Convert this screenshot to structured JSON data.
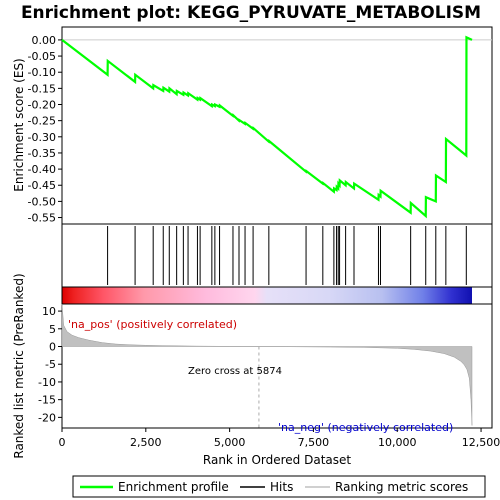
{
  "chart_data": {
    "type": "line",
    "title": "Enrichment plot: KEGG_PYRUVATE_METABOLISM",
    "top_panel": {
      "ylabel": "Enrichment score (ES)",
      "ylim": [
        -0.57,
        0.04
      ],
      "yticks": [
        0.0,
        -0.05,
        -0.1,
        -0.15,
        -0.2,
        -0.25,
        -0.3,
        -0.35,
        -0.4,
        -0.45,
        -0.5,
        -0.55
      ],
      "ytick_labels": [
        "0.00",
        "-0.05",
        "-0.10",
        "-0.15",
        "-0.20",
        "-0.25",
        "-0.30",
        "-0.35",
        "-0.40",
        "-0.45",
        "-0.50",
        "-0.55"
      ],
      "series": [
        {
          "name": "Enrichment profile",
          "color": "#00ff00",
          "x": [
            0,
            1360,
            1365,
            2180,
            2185,
            2720,
            2725,
            3020,
            3025,
            3200,
            3205,
            3420,
            3425,
            3620,
            3625,
            3760,
            3765,
            4040,
            4045,
            4120,
            4125,
            4470,
            4475,
            4560,
            4565,
            4700,
            4705,
            5100,
            5105,
            5280,
            5285,
            5460,
            5465,
            5700,
            5705,
            6170,
            6175,
            7280,
            7285,
            7780,
            7785,
            8110,
            8115,
            8190,
            8195,
            8240,
            8245,
            8280,
            8285,
            8460,
            8465,
            8710,
            8715,
            9440,
            9445,
            9500,
            9505,
            10400,
            10405,
            10850,
            10855,
            11150,
            11155,
            11450,
            11455,
            12060,
            12065,
            12230
          ],
          "y": [
            0.0,
            -0.108,
            -0.065,
            -0.13,
            -0.108,
            -0.15,
            -0.14,
            -0.158,
            -0.148,
            -0.16,
            -0.15,
            -0.168,
            -0.158,
            -0.17,
            -0.163,
            -0.172,
            -0.165,
            -0.185,
            -0.18,
            -0.185,
            -0.18,
            -0.205,
            -0.2,
            -0.205,
            -0.2,
            -0.207,
            -0.203,
            -0.235,
            -0.233,
            -0.25,
            -0.248,
            -0.26,
            -0.257,
            -0.275,
            -0.273,
            -0.315,
            -0.313,
            -0.408,
            -0.406,
            -0.445,
            -0.443,
            -0.47,
            -0.46,
            -0.465,
            -0.455,
            -0.46,
            -0.445,
            -0.45,
            -0.435,
            -0.45,
            -0.44,
            -0.46,
            -0.445,
            -0.495,
            -0.48,
            -0.485,
            -0.467,
            -0.535,
            -0.505,
            -0.545,
            -0.487,
            -0.5,
            -0.42,
            -0.44,
            -0.307,
            -0.358,
            0.008,
            0.0
          ]
        }
      ],
      "hits": [
        1360,
        2180,
        2720,
        3020,
        3200,
        3420,
        3620,
        3760,
        4040,
        4120,
        4470,
        4560,
        4700,
        5100,
        5280,
        5460,
        5700,
        6170,
        7280,
        7780,
        8110,
        8190,
        8240,
        8280,
        8460,
        8710,
        9440,
        9500,
        10400,
        10850,
        11150,
        11450,
        12060
      ]
    },
    "bottom_panel": {
      "ylabel": "Ranked list metric (PreRanked)",
      "ylim": [
        -23,
        12
      ],
      "yticks": [
        10,
        5,
        0,
        -5,
        -10,
        -15,
        -20
      ],
      "ytick_labels": [
        "10",
        "5",
        "0",
        "-5",
        "-10",
        "-15",
        "-20"
      ],
      "xlabel": "Rank in Ordered Dataset",
      "x_ticks": [
        0,
        2500,
        5000,
        7500,
        10000,
        12500
      ],
      "x_tick_labels": [
        "0",
        "2,500",
        "5,000",
        "7,500",
        "10,000",
        "12,500"
      ],
      "x": [
        0,
        50,
        150,
        300,
        500,
        800,
        1200,
        1600,
        2000,
        2500,
        3000,
        4000,
        5000,
        5874,
        7000,
        8000,
        9000,
        10000,
        10500,
        11000,
        11400,
        11700,
        11900,
        12000,
        12080,
        12150,
        12200,
        12230
      ],
      "y": [
        12,
        6.0,
        4.2,
        3.2,
        2.5,
        1.8,
        1.1,
        0.7,
        0.5,
        0.35,
        0.25,
        0.12,
        0.05,
        0.0,
        -0.08,
        -0.15,
        -0.25,
        -0.5,
        -0.8,
        -1.3,
        -2.0,
        -3.0,
        -4.2,
        -5.2,
        -6.5,
        -9.0,
        -15.0,
        -22.3
      ],
      "fill_color": "#c0c0c0",
      "zero_cross": 5874,
      "annotations": {
        "pos": "'na_pos' (positively correlated)",
        "neg": "'na_neg' (negatively correlated)",
        "zero": "Zero cross at 5874"
      }
    },
    "x_max": 12230,
    "legend": {
      "placement": "bottom",
      "items": [
        {
          "label": "Enrichment profile",
          "color": "#00ff00"
        },
        {
          "label": "Hits",
          "color": "#000000"
        },
        {
          "label": "Ranking metric scores",
          "color": "#c0c0c0"
        }
      ]
    }
  }
}
